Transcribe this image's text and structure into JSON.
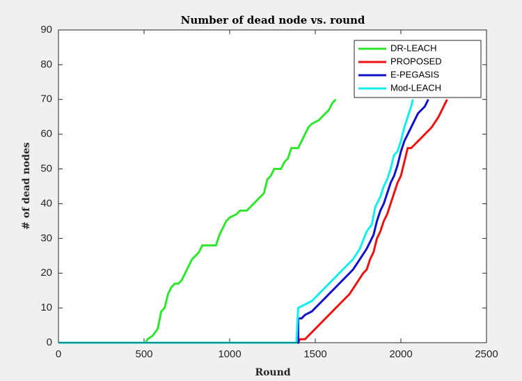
{
  "chart_data": {
    "type": "line",
    "title": "Number of dead node vs. round",
    "x_label": "Round",
    "y_label": "# of dead nodes",
    "xlim": [
      0,
      2500
    ],
    "xticks": [
      0,
      500,
      1000,
      1500,
      2000,
      2500
    ],
    "ylim": [
      0,
      90
    ],
    "yticks": [
      0,
      10,
      20,
      30,
      40,
      50,
      60,
      70,
      80,
      90
    ],
    "legend": "upper right",
    "grid": false,
    "series": [
      {
        "name": "DR-LEACH",
        "color": "#2ee62e",
        "x": [
          0,
          510,
          520,
          550,
          580,
          600,
          620,
          640,
          660,
          680,
          700,
          720,
          740,
          760,
          780,
          800,
          820,
          840,
          920,
          940,
          960,
          980,
          1000,
          1040,
          1060,
          1100,
          1140,
          1160,
          1180,
          1200,
          1220,
          1240,
          1260,
          1300,
          1320,
          1340,
          1360,
          1400,
          1440,
          1460,
          1480,
          1520,
          1560,
          1580,
          1600,
          1620
        ],
        "values": [
          0,
          0,
          1,
          2,
          4,
          9,
          10,
          14,
          16,
          17,
          17,
          18,
          20,
          22,
          24,
          25,
          26,
          28,
          28,
          31,
          33,
          35,
          36,
          37,
          38,
          38,
          40,
          41,
          42,
          43,
          47,
          48,
          50,
          50,
          52,
          53,
          56,
          56,
          60,
          62,
          63,
          64,
          66,
          67,
          69,
          70
        ]
      },
      {
        "name": "PROPOSED",
        "color": "#ee1111",
        "x": [
          0,
          1400,
          1410,
          1440,
          1460,
          1500,
          1540,
          1580,
          1620,
          1660,
          1700,
          1740,
          1780,
          1800,
          1820,
          1840,
          1860,
          1880,
          1900,
          1920,
          1940,
          1960,
          1980,
          2000,
          2020,
          2040,
          2060,
          2080,
          2100,
          2140,
          2180,
          2220,
          2240,
          2260,
          2270
        ],
        "values": [
          0,
          0,
          1,
          1,
          2,
          4,
          6,
          8,
          10,
          12,
          14,
          17,
          20,
          21,
          24,
          26,
          30,
          32,
          35,
          37,
          40,
          43,
          46,
          48,
          52,
          56,
          56,
          57,
          58,
          60,
          62,
          65,
          67,
          69,
          70
        ]
      },
      {
        "name": "E-PEGASIS",
        "color": "#1111cc",
        "x": [
          0,
          1400,
          1400,
          1420,
          1440,
          1480,
          1520,
          1560,
          1600,
          1640,
          1680,
          1720,
          1760,
          1800,
          1820,
          1840,
          1860,
          1880,
          1900,
          1920,
          1940,
          1960,
          1980,
          2000,
          2020,
          2040,
          2060,
          2080,
          2100,
          2140,
          2160
        ],
        "values": [
          0,
          0,
          7,
          7,
          8,
          9,
          11,
          13,
          15,
          17,
          19,
          21,
          24,
          27,
          29,
          31,
          35,
          38,
          40,
          43,
          46,
          48,
          51,
          55,
          58,
          60,
          62,
          64,
          66,
          68,
          70
        ]
      },
      {
        "name": "Mod-LEACH",
        "color": "#11eeee",
        "x": [
          0,
          1390,
          1400,
          1440,
          1480,
          1520,
          1560,
          1600,
          1640,
          1680,
          1720,
          1760,
          1800,
          1830,
          1850,
          1880,
          1900,
          1920,
          1940,
          1960,
          1980,
          2000,
          2020,
          2040,
          2060,
          2070
        ],
        "values": [
          0,
          0,
          10,
          11,
          12,
          14,
          16,
          18,
          20,
          22,
          24,
          27,
          32,
          34,
          39,
          42,
          45,
          47,
          50,
          54,
          55,
          58,
          62,
          65,
          68,
          70
        ]
      }
    ]
  }
}
